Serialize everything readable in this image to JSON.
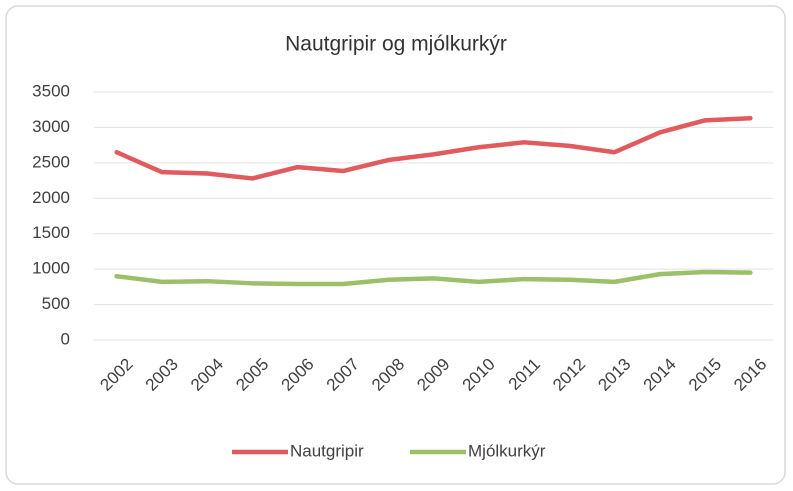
{
  "chart_data": {
    "type": "line",
    "title": "Nautgripir og mjólkurkýr",
    "categories": [
      "2002",
      "2003",
      "2004",
      "2005",
      "2006",
      "2007",
      "2008",
      "2009",
      "2010",
      "2011",
      "2012",
      "2013",
      "2014",
      "2015",
      "2016"
    ],
    "series": [
      {
        "name": "Nautgripir",
        "color": "#e05a5e",
        "values": [
          2650,
          2370,
          2350,
          2280,
          2440,
          2385,
          2540,
          2620,
          2720,
          2790,
          2740,
          2650,
          2930,
          3100,
          3130
        ]
      },
      {
        "name": "Mjólkurkýr",
        "color": "#9cbf6a",
        "values": [
          900,
          820,
          830,
          800,
          790,
          790,
          850,
          870,
          820,
          860,
          850,
          820,
          930,
          960,
          950
        ]
      }
    ],
    "ylim": [
      0,
      3500
    ],
    "yticks": [
      0,
      500,
      1000,
      1500,
      2000,
      2500,
      3000,
      3500
    ],
    "grid": true,
    "legend": "bottom"
  }
}
